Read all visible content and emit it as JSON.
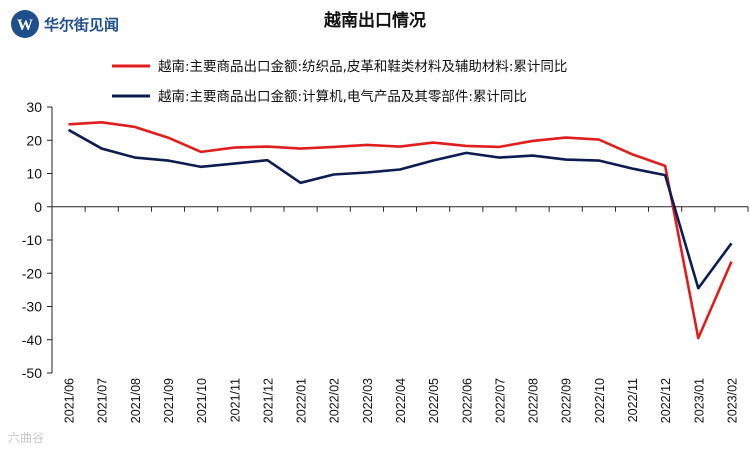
{
  "brand": {
    "name": "华尔街见闻",
    "logo_letter": "W",
    "logo_color": "#1f4e8c"
  },
  "watermark": "六曲谷",
  "chart_data": {
    "type": "line",
    "title": "越南出口情况",
    "xlabel": "",
    "ylabel": "",
    "ylim": [
      -50,
      30
    ],
    "yticks": [
      30,
      20,
      10,
      0,
      -10,
      -20,
      -30,
      -40,
      -50
    ],
    "grid": false,
    "legend_position": "top",
    "categories": [
      "2021/06",
      "2021/07",
      "2021/08",
      "2021/09",
      "2021/10",
      "2021/11",
      "2021/12",
      "2022/01",
      "2022/02",
      "2022/03",
      "2022/04",
      "2022/05",
      "2022/06",
      "2022/07",
      "2022/08",
      "2022/09",
      "2022/10",
      "2022/11",
      "2022/12",
      "2023/01",
      "2023/02"
    ],
    "series": [
      {
        "name": "越南:主要商品出口金额:纺织品,皮革和鞋类材料及辅助材料:累计同比",
        "color": "#e01e1e",
        "values": [
          24.8,
          25.4,
          24.0,
          20.8,
          16.5,
          17.8,
          18.1,
          17.5,
          18.0,
          18.6,
          18.1,
          19.3,
          18.3,
          18.0,
          19.8,
          20.8,
          20.2,
          15.8,
          12.3,
          -39.5,
          -16.5
        ]
      },
      {
        "name": "越南:主要商品出口金额:计算机,电气产品及其零部件:累计同比",
        "color": "#0d1d4f",
        "values": [
          23.1,
          17.5,
          14.8,
          13.9,
          12.0,
          13.0,
          14.0,
          7.2,
          9.7,
          10.3,
          11.2,
          13.9,
          16.2,
          14.8,
          15.4,
          14.2,
          13.9,
          11.5,
          9.5,
          -24.5,
          -11.0
        ]
      }
    ]
  }
}
